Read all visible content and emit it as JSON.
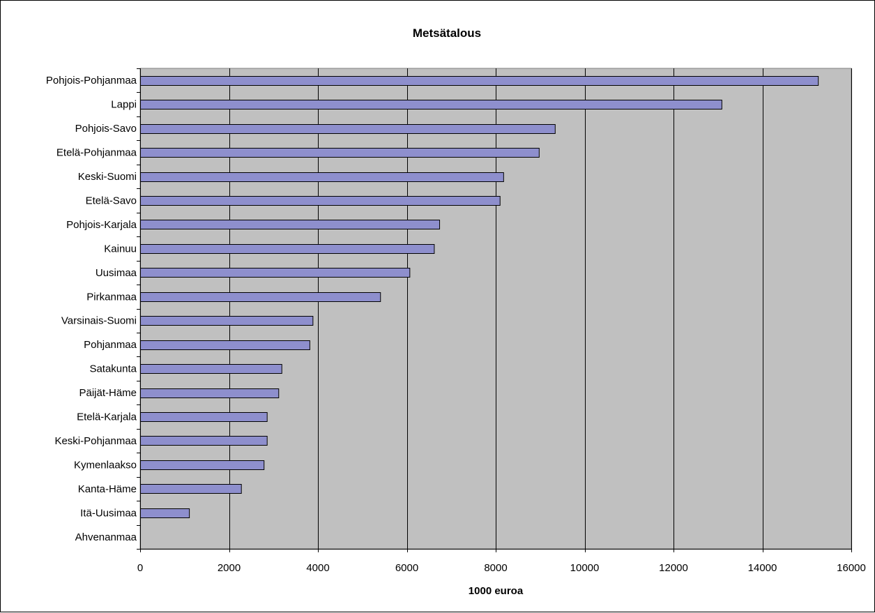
{
  "chart_data": {
    "type": "bar",
    "orientation": "horizontal",
    "title": "Metsätalous",
    "xlabel": "1000 euroa",
    "ylabel": "",
    "categories": [
      "Pohjois-Pohjanmaa",
      "Lappi",
      "Pohjois-Savo",
      "Etelä-Pohjanmaa",
      "Keski-Suomi",
      "Etelä-Savo",
      "Pohjois-Karjala",
      "Kainuu",
      "Uusimaa",
      "Pirkanmaa",
      "Varsinais-Suomi",
      "Pohjanmaa",
      "Satakunta",
      "Päijät-Häme",
      "Etelä-Karjala",
      "Keski-Pohjanmaa",
      "Kymenlaakso",
      "Kanta-Häme",
      "Itä-Uusimaa",
      "Ahvenanmaa"
    ],
    "values": [
      15250,
      13080,
      9330,
      8970,
      8170,
      8090,
      6730,
      6610,
      6060,
      5400,
      3880,
      3810,
      3180,
      3110,
      2850,
      2850,
      2780,
      2270,
      1100,
      0
    ],
    "xlim": [
      0,
      16000
    ],
    "xticks": [
      0,
      2000,
      4000,
      6000,
      8000,
      10000,
      12000,
      14000,
      16000
    ],
    "xtick_labels": [
      "0",
      "2000",
      "4000",
      "6000",
      "8000",
      "10000",
      "12000",
      "14000",
      "16000"
    ],
    "grid": "vertical",
    "legend": "none",
    "colors": {
      "bar": "#8e8fcd",
      "plot_background": "#c0c0c0",
      "grid": "#000000"
    }
  }
}
